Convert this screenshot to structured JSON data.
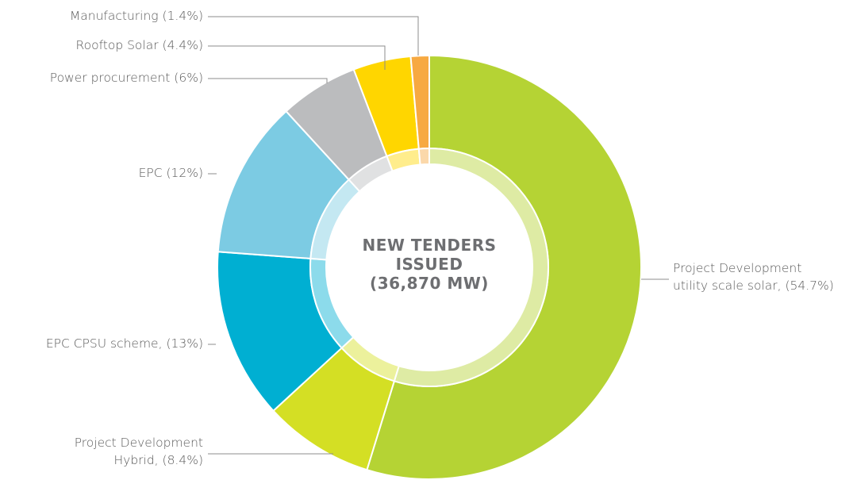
{
  "chart_data": {
    "type": "donut",
    "title": [
      "NEW TENDERS",
      "ISSUED",
      "(36,870 MW)"
    ],
    "values": [
      54.7,
      8.4,
      13,
      12,
      6,
      4.4,
      1.4
    ],
    "value_labels": [
      [
        "Project Development",
        "utility scale solar, (54.7%)"
      ],
      [
        "Project Development",
        "Hybrid, (8.4%)"
      ],
      [
        "EPC CPSU scheme, (13%)"
      ],
      [
        "EPC (12%)"
      ],
      [
        "Power procurement (6%)"
      ],
      [
        "Rooftop Solar (4.4%)"
      ],
      [
        "Manufacturing (1.4%)"
      ]
    ],
    "colors": [
      "#b5d334",
      "#d4df24",
      "#00afd2",
      "#7ccbe3",
      "#bbbcbe",
      "#ffd600",
      "#f7a941"
    ]
  }
}
